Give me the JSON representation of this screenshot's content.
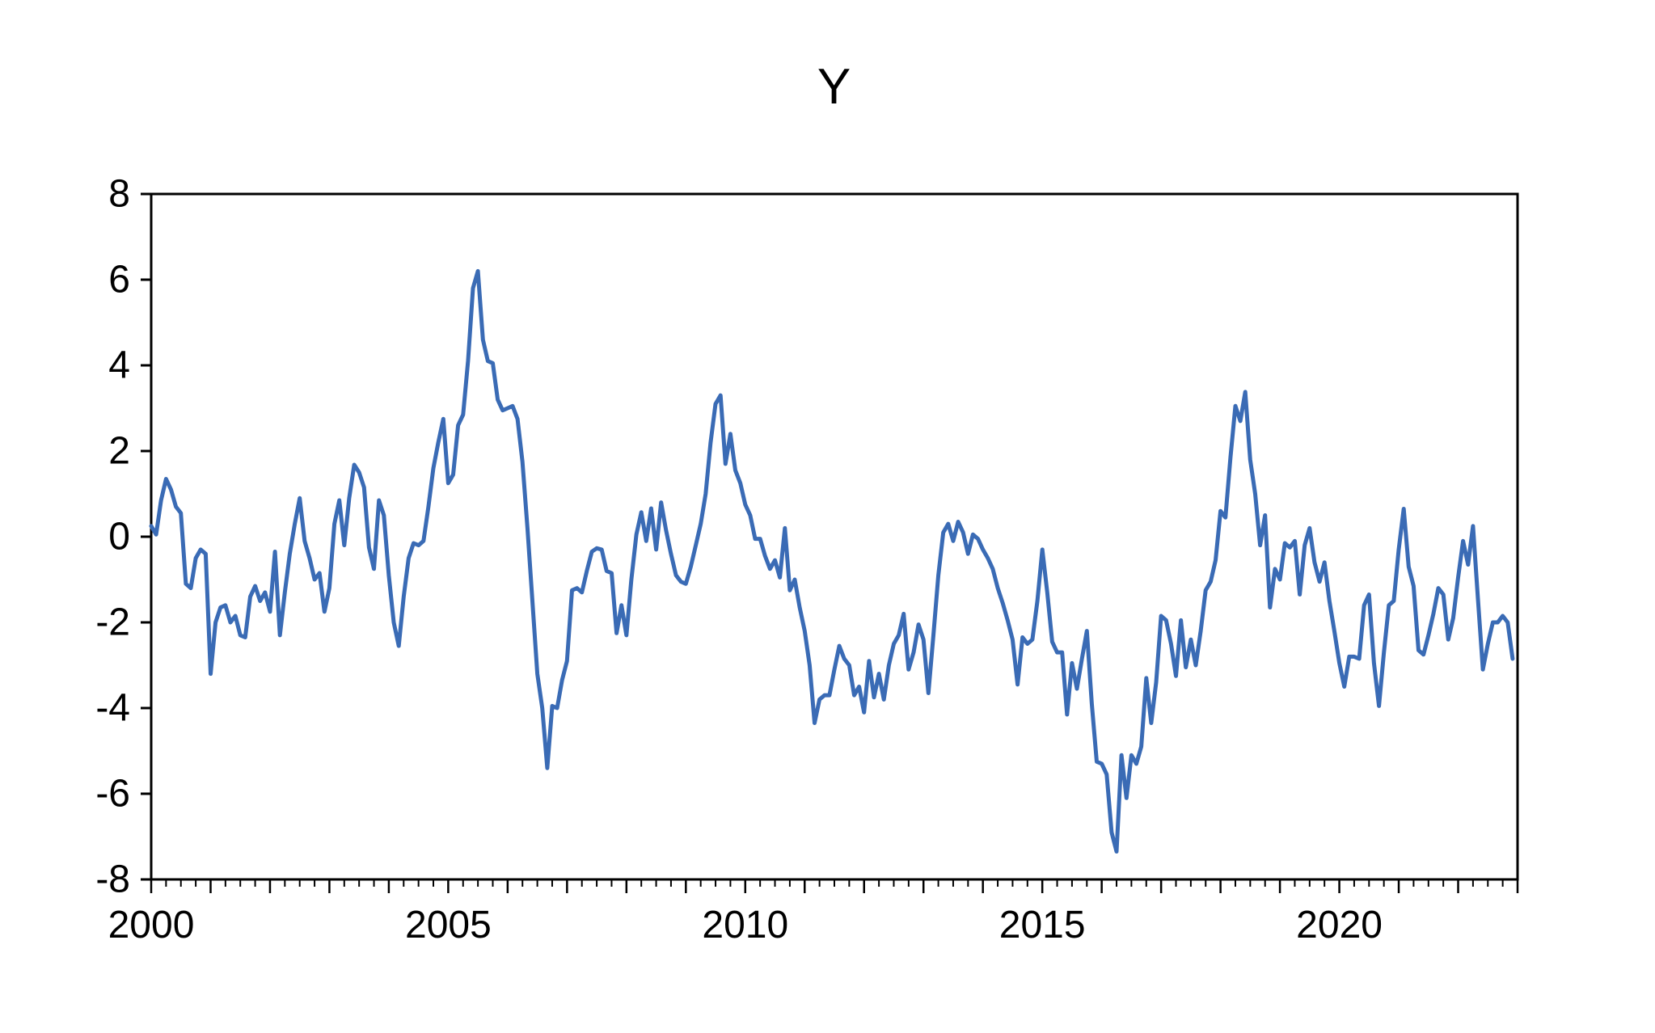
{
  "window": {
    "background": "#ffffff"
  },
  "chart_data": {
    "type": "line",
    "title": "Y",
    "xlabel": "",
    "ylabel": "",
    "frequency": "monthly",
    "x_start": "2000M01",
    "x_end": "2022M12",
    "x_axis_first_year": 2000,
    "x_axis_last_year": 2023,
    "minor_tick_months": 3,
    "x_tick_label_years": [
      2000,
      2005,
      2010,
      2015,
      2020
    ],
    "x_tick_labels": [
      "2000",
      "2005",
      "2010",
      "2015",
      "2020"
    ],
    "ylim": [
      -8,
      8
    ],
    "y_ticks": [
      -8,
      -6,
      -4,
      -2,
      0,
      2,
      4,
      6,
      8
    ],
    "grid": false,
    "legend": "none",
    "line_color": "#3a6bb5",
    "axis_color": "#000000",
    "series": [
      {
        "name": "Y",
        "values": [
          0.25,
          0.05,
          0.85,
          1.35,
          1.1,
          0.7,
          0.55,
          -1.1,
          -1.2,
          -0.5,
          -0.3,
          -0.4,
          -3.2,
          -2.0,
          -1.65,
          -1.6,
          -2.0,
          -1.85,
          -2.3,
          -2.35,
          -1.4,
          -1.15,
          -1.5,
          -1.3,
          -1.75,
          -0.35,
          -2.3,
          -1.3,
          -0.4,
          0.3,
          0.9,
          -0.1,
          -0.5,
          -1.0,
          -0.85,
          -1.75,
          -1.2,
          0.3,
          0.85,
          -0.2,
          0.9,
          1.68,
          1.5,
          1.15,
          -0.25,
          -0.75,
          0.85,
          0.5,
          -0.9,
          -2.0,
          -2.55,
          -1.4,
          -0.5,
          -0.15,
          -0.2,
          -0.1,
          0.7,
          1.6,
          2.2,
          2.75,
          1.25,
          1.45,
          2.6,
          2.85,
          4.1,
          5.8,
          6.2,
          4.6,
          4.1,
          4.05,
          3.2,
          2.95,
          3.0,
          3.05,
          2.75,
          1.75,
          0.2,
          -1.5,
          -3.2,
          -4.0,
          -5.4,
          -3.95,
          -4.0,
          -3.35,
          -2.9,
          -1.25,
          -1.2,
          -1.3,
          -0.8,
          -0.35,
          -0.27,
          -0.3,
          -0.8,
          -0.85,
          -2.25,
          -1.6,
          -2.3,
          -1.0,
          0.05,
          0.57,
          -0.1,
          0.66,
          -0.3,
          0.8,
          0.15,
          -0.4,
          -0.9,
          -1.05,
          -1.1,
          -0.7,
          -0.2,
          0.3,
          1.0,
          2.2,
          3.1,
          3.3,
          1.7,
          2.4,
          1.55,
          1.25,
          0.75,
          0.5,
          -0.05,
          -0.05,
          -0.45,
          -0.75,
          -0.55,
          -0.95,
          0.2,
          -1.25,
          -1.0,
          -1.65,
          -2.2,
          -3.0,
          -4.35,
          -3.8,
          -3.7,
          -3.7,
          -3.1,
          -2.55,
          -2.85,
          -3.0,
          -3.7,
          -3.5,
          -4.1,
          -2.9,
          -3.75,
          -3.2,
          -3.8,
          -3.0,
          -2.5,
          -2.3,
          -1.8,
          -3.1,
          -2.7,
          -2.05,
          -2.4,
          -3.65,
          -2.3,
          -0.9,
          0.1,
          0.3,
          -0.1,
          0.35,
          0.1,
          -0.4,
          0.05,
          -0.05,
          -0.3,
          -0.5,
          -0.75,
          -1.2,
          -1.55,
          -1.95,
          -2.4,
          -3.45,
          -2.35,
          -2.5,
          -2.4,
          -1.5,
          -0.3,
          -1.3,
          -2.45,
          -2.7,
          -2.7,
          -4.15,
          -2.95,
          -3.55,
          -2.85,
          -2.2,
          -3.9,
          -5.25,
          -5.3,
          -5.55,
          -6.9,
          -7.35,
          -5.1,
          -6.1,
          -5.1,
          -5.3,
          -4.9,
          -3.3,
          -4.35,
          -3.4,
          -1.85,
          -1.95,
          -2.5,
          -3.25,
          -1.95,
          -3.05,
          -2.4,
          -3.0,
          -2.2,
          -1.25,
          -1.05,
          -0.55,
          0.6,
          0.45,
          1.85,
          3.05,
          2.7,
          3.38,
          1.8,
          1.0,
          -0.2,
          0.5,
          -1.65,
          -0.75,
          -1.0,
          -0.15,
          -0.25,
          -0.1,
          -1.35,
          -0.2,
          0.2,
          -0.6,
          -1.05,
          -0.6,
          -1.5,
          -2.2,
          -2.95,
          -3.5,
          -2.8,
          -2.8,
          -2.85,
          -1.6,
          -1.35,
          -2.95,
          -3.95,
          -2.7,
          -1.6,
          -1.5,
          -0.3,
          0.65,
          -0.7,
          -1.15,
          -2.65,
          -2.75,
          -2.3,
          -1.8,
          -1.2,
          -1.35,
          -2.4,
          -1.9,
          -0.95,
          -0.1,
          -0.65,
          0.25,
          -1.45,
          -3.1,
          -2.5,
          -2.0,
          -2.0,
          -1.85,
          -2.0,
          -2.85
        ]
      }
    ]
  }
}
